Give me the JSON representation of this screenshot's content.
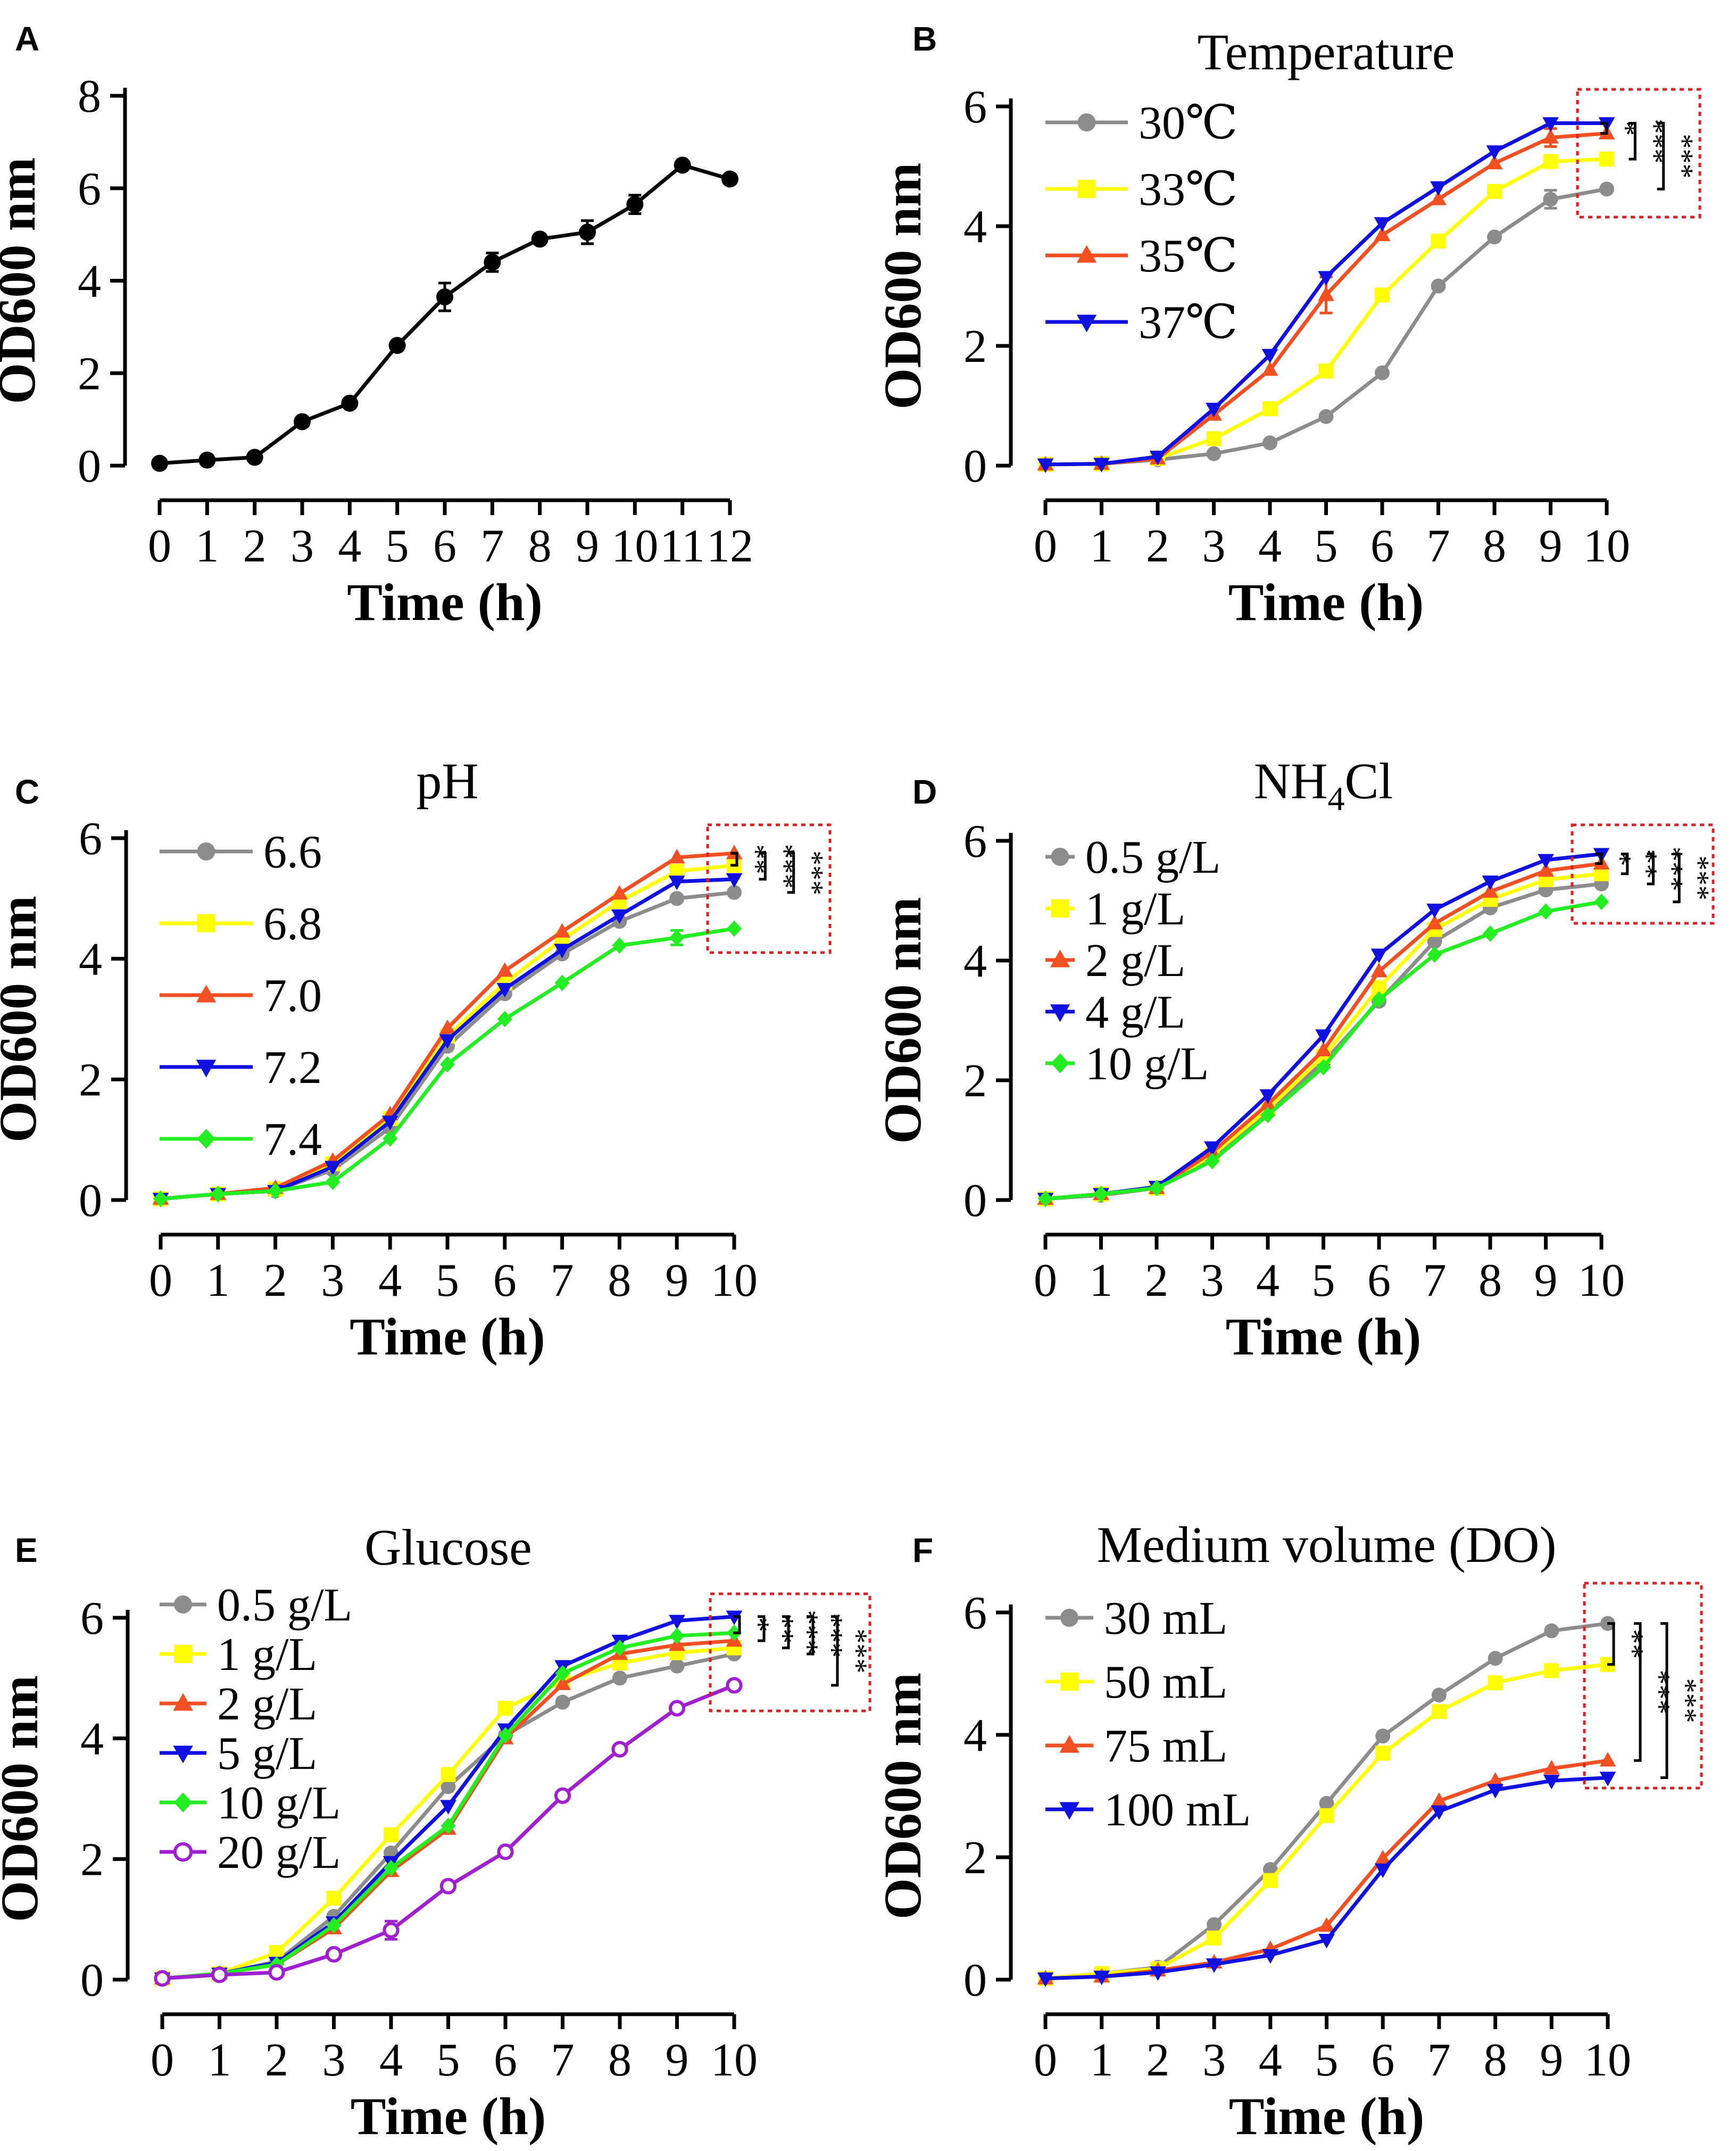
{
  "chart_data": [
    {
      "type": "line",
      "panel": "A",
      "title": "",
      "xlabel": "Time (h)",
      "ylabel": "OD600 nm",
      "xlim": [
        0,
        12
      ],
      "ylim": [
        0,
        8
      ],
      "xticks": [
        0,
        1,
        2,
        3,
        4,
        5,
        6,
        7,
        8,
        9,
        10,
        11,
        12
      ],
      "yticks": [
        0,
        2,
        4,
        6,
        8
      ],
      "x": [
        0,
        1,
        2,
        3,
        4,
        5,
        6,
        7,
        8,
        9,
        10,
        11,
        12
      ],
      "series": [
        {
          "name": "",
          "color": "#000000",
          "marker": "circle",
          "values": [
            0.05,
            0.12,
            0.18,
            0.95,
            1.35,
            2.6,
            3.65,
            4.4,
            4.9,
            5.05,
            5.65,
            6.5,
            6.2
          ],
          "errors": [
            0,
            0,
            0,
            0,
            0,
            0,
            0.3,
            0.2,
            0,
            0.25,
            0.2,
            0,
            0
          ]
        }
      ],
      "legend": [],
      "significance": []
    },
    {
      "type": "line",
      "panel": "B",
      "title": "Temperature",
      "xlabel": "Time (h)",
      "ylabel": "OD600 nm",
      "xlim": [
        0,
        10
      ],
      "ylim": [
        0,
        6
      ],
      "xticks": [
        0,
        1,
        2,
        3,
        4,
        5,
        6,
        7,
        8,
        9,
        10
      ],
      "yticks": [
        0,
        2,
        4,
        6
      ],
      "x": [
        0,
        1,
        2,
        3,
        4,
        5,
        6,
        7,
        8,
        9,
        10
      ],
      "series": [
        {
          "name": "30℃",
          "color": "#8c8c8c",
          "marker": "circle",
          "values": [
            0.02,
            0.03,
            0.1,
            0.2,
            0.38,
            0.82,
            1.55,
            3.0,
            3.82,
            4.45,
            4.62
          ],
          "errors": [
            0,
            0,
            0,
            0,
            0,
            0,
            0,
            0,
            0,
            0.15,
            0
          ]
        },
        {
          "name": "33℃",
          "color": "#ffff00",
          "marker": "square",
          "values": [
            0.02,
            0.03,
            0.12,
            0.45,
            0.95,
            1.58,
            2.85,
            3.75,
            4.58,
            5.08,
            5.12
          ],
          "errors": [
            0,
            0,
            0,
            0,
            0,
            0,
            0,
            0,
            0,
            0,
            0
          ]
        },
        {
          "name": "35℃",
          "color": "#f25022",
          "marker": "triangle-up",
          "values": [
            0.02,
            0.03,
            0.12,
            0.85,
            1.6,
            2.85,
            3.85,
            4.45,
            5.05,
            5.48,
            5.55
          ],
          "errors": [
            0,
            0,
            0,
            0,
            0,
            0.3,
            0,
            0,
            0,
            0.15,
            0
          ]
        },
        {
          "name": "37℃",
          "color": "#1010e0",
          "marker": "triangle-down",
          "values": [
            0.02,
            0.03,
            0.15,
            0.95,
            1.85,
            3.15,
            4.05,
            4.65,
            5.25,
            5.72,
            5.72
          ],
          "errors": [
            0,
            0,
            0,
            0,
            0,
            0,
            0,
            0,
            0,
            0,
            0
          ]
        }
      ],
      "legend": [
        "30℃",
        "33℃",
        "35℃",
        "37℃"
      ],
      "significance": [
        "*",
        "***",
        "***"
      ]
    },
    {
      "type": "line",
      "panel": "C",
      "title": "pH",
      "xlabel": "Time (h)",
      "ylabel": "OD600 nm",
      "xlim": [
        0,
        10
      ],
      "ylim": [
        0,
        6
      ],
      "xticks": [
        0,
        1,
        2,
        3,
        4,
        5,
        6,
        7,
        8,
        9,
        10
      ],
      "yticks": [
        0,
        2,
        4,
        6
      ],
      "x": [
        0,
        1,
        2,
        3,
        4,
        5,
        6,
        7,
        8,
        9,
        10
      ],
      "series": [
        {
          "name": "6.6",
          "color": "#8c8c8c",
          "marker": "circle",
          "values": [
            0.02,
            0.1,
            0.15,
            0.5,
            1.2,
            2.55,
            3.42,
            4.08,
            4.62,
            5.0,
            5.1
          ],
          "errors": [
            0,
            0,
            0,
            0,
            0,
            0,
            0,
            0,
            0,
            0,
            0
          ]
        },
        {
          "name": "6.8",
          "color": "#ffff00",
          "marker": "square",
          "values": [
            0.02,
            0.1,
            0.18,
            0.6,
            1.35,
            2.72,
            3.6,
            4.32,
            4.95,
            5.45,
            5.55
          ],
          "errors": [
            0,
            0,
            0,
            0,
            0,
            0,
            0,
            0,
            0,
            0,
            0
          ]
        },
        {
          "name": "7.0",
          "color": "#f25022",
          "marker": "triangle-up",
          "values": [
            0.02,
            0.1,
            0.2,
            0.65,
            1.42,
            2.85,
            3.8,
            4.45,
            5.08,
            5.68,
            5.75
          ],
          "errors": [
            0,
            0,
            0,
            0,
            0,
            0,
            0,
            0,
            0,
            0,
            0
          ]
        },
        {
          "name": "7.2",
          "color": "#1010e0",
          "marker": "triangle-down",
          "values": [
            0.02,
            0.1,
            0.15,
            0.55,
            1.3,
            2.65,
            3.5,
            4.15,
            4.72,
            5.28,
            5.32
          ],
          "errors": [
            0,
            0,
            0,
            0,
            0,
            0,
            0,
            0,
            0,
            0,
            0
          ]
        },
        {
          "name": "7.4",
          "color": "#22ee22",
          "marker": "diamond",
          "values": [
            0.02,
            0.1,
            0.15,
            0.3,
            1.02,
            2.25,
            3.0,
            3.6,
            4.22,
            4.35,
            4.5
          ],
          "errors": [
            0,
            0,
            0,
            0,
            0,
            0,
            0,
            0,
            0,
            0.12,
            0
          ]
        }
      ],
      "legend": [
        "6.6",
        "6.8",
        "7.0",
        "7.2",
        "7.4"
      ],
      "significance": [
        "**",
        "***",
        "***"
      ]
    },
    {
      "type": "line",
      "panel": "D",
      "title": "NH4Cl",
      "title_main": "NH",
      "title_sub": "4",
      "title_tail": "Cl",
      "xlabel": "Time (h)",
      "ylabel": "OD600 nm",
      "xlim": [
        0,
        10
      ],
      "ylim": [
        0,
        6
      ],
      "xticks": [
        0,
        1,
        2,
        3,
        4,
        5,
        6,
        7,
        8,
        9,
        10
      ],
      "yticks": [
        0,
        2,
        4,
        6
      ],
      "x": [
        0,
        1,
        2,
        3,
        4,
        5,
        6,
        7,
        8,
        9,
        10
      ],
      "series": [
        {
          "name": "0.5 g/L",
          "color": "#8c8c8c",
          "marker": "circle",
          "values": [
            0.02,
            0.08,
            0.2,
            0.72,
            1.5,
            2.3,
            3.32,
            4.32,
            4.88,
            5.18,
            5.28
          ],
          "errors": [
            0,
            0,
            0,
            0,
            0,
            0,
            0,
            0,
            0,
            0,
            0
          ]
        },
        {
          "name": "1 g/L",
          "color": "#ffff00",
          "marker": "square",
          "values": [
            0.02,
            0.1,
            0.2,
            0.75,
            1.52,
            2.4,
            3.55,
            4.52,
            5.02,
            5.35,
            5.45
          ],
          "errors": [
            0,
            0,
            0,
            0,
            0,
            0,
            0,
            0,
            0,
            0,
            0
          ]
        },
        {
          "name": "2 g/L",
          "color": "#f25022",
          "marker": "triangle-up",
          "values": [
            0.02,
            0.1,
            0.2,
            0.8,
            1.6,
            2.5,
            3.82,
            4.62,
            5.15,
            5.5,
            5.62
          ],
          "errors": [
            0,
            0,
            0,
            0,
            0,
            0,
            0,
            0,
            0,
            0,
            0
          ]
        },
        {
          "name": "4 g/L",
          "color": "#1010e0",
          "marker": "triangle-down",
          "values": [
            0.02,
            0.1,
            0.22,
            0.88,
            1.75,
            2.75,
            4.1,
            4.85,
            5.32,
            5.68,
            5.78
          ],
          "errors": [
            0,
            0,
            0,
            0,
            0,
            0,
            0,
            0,
            0,
            0,
            0
          ]
        },
        {
          "name": "10 g/L",
          "color": "#22ee22",
          "marker": "diamond",
          "values": [
            0.02,
            0.1,
            0.2,
            0.65,
            1.42,
            2.22,
            3.35,
            4.1,
            4.45,
            4.82,
            4.98
          ],
          "errors": [
            0,
            0,
            0,
            0,
            0,
            0,
            0,
            0,
            0,
            0,
            0
          ]
        }
      ],
      "legend": [
        "0.5 g/L",
        "1 g/L",
        "2 g/L",
        "4 g/L",
        "10 g/L"
      ],
      "significance": [
        "*",
        "**",
        "***",
        "***"
      ]
    },
    {
      "type": "line",
      "panel": "E",
      "title": "Glucose",
      "xlabel": "Time (h)",
      "ylabel": "OD600 nm",
      "xlim": [
        0,
        10
      ],
      "ylim": [
        0,
        6
      ],
      "xticks": [
        0,
        1,
        2,
        3,
        4,
        5,
        6,
        7,
        8,
        9,
        10
      ],
      "yticks": [
        0,
        2,
        4,
        6
      ],
      "x": [
        0,
        1,
        2,
        3,
        4,
        5,
        6,
        7,
        8,
        9,
        10
      ],
      "series": [
        {
          "name": "0.5 g/L",
          "color": "#8c8c8c",
          "marker": "circle",
          "values": [
            0.02,
            0.1,
            0.3,
            1.05,
            2.1,
            3.2,
            4.05,
            4.6,
            5.0,
            5.2,
            5.4
          ],
          "errors": [
            0,
            0,
            0,
            0,
            0,
            0,
            0,
            0,
            0,
            0,
            0
          ]
        },
        {
          "name": "1 g/L",
          "color": "#ffff00",
          "marker": "square",
          "values": [
            0.02,
            0.1,
            0.45,
            1.35,
            2.4,
            3.4,
            4.5,
            4.95,
            5.25,
            5.42,
            5.5
          ],
          "errors": [
            0,
            0,
            0,
            0,
            0,
            0,
            0,
            0,
            0,
            0,
            0
          ]
        },
        {
          "name": "2 g/L",
          "color": "#f25022",
          "marker": "triangle-up",
          "values": [
            0.02,
            0.1,
            0.25,
            0.85,
            1.8,
            2.5,
            4.0,
            4.9,
            5.4,
            5.55,
            5.62
          ],
          "errors": [
            0,
            0,
            0,
            0,
            0,
            0,
            0,
            0,
            0,
            0,
            0
          ]
        },
        {
          "name": "5 g/L",
          "color": "#1010e0",
          "marker": "triangle-down",
          "values": [
            0.02,
            0.1,
            0.28,
            0.95,
            1.95,
            2.88,
            4.15,
            5.2,
            5.62,
            5.95,
            6.02
          ],
          "errors": [
            0,
            0,
            0,
            0,
            0,
            0,
            0,
            0,
            0,
            0,
            0
          ]
        },
        {
          "name": "10 g/L",
          "color": "#22ee22",
          "marker": "diamond",
          "values": [
            0.02,
            0.1,
            0.25,
            0.9,
            1.85,
            2.55,
            4.05,
            5.08,
            5.5,
            5.7,
            5.75
          ],
          "errors": [
            0,
            0,
            0,
            0,
            0,
            0,
            0,
            0,
            0,
            0,
            0
          ]
        },
        {
          "name": "20 g/L",
          "color": "#a020d0",
          "marker": "open-circle",
          "values": [
            0.02,
            0.08,
            0.12,
            0.42,
            0.82,
            1.55,
            2.12,
            3.05,
            3.82,
            4.5,
            4.88
          ],
          "errors": [
            0,
            0,
            0,
            0,
            0.15,
            0,
            0,
            0,
            0,
            0,
            0
          ]
        }
      ],
      "legend": [
        "0.5 g/L",
        "1 g/L",
        "2 g/L",
        "5 g/L",
        "10 g/L",
        "20 g/L"
      ],
      "significance": [
        "*",
        "**",
        "***",
        "***",
        "***"
      ]
    },
    {
      "type": "line",
      "panel": "F",
      "title": "Medium volume (DO)",
      "xlabel": "Time (h)",
      "ylabel": "OD600 nm",
      "xlim": [
        0,
        10
      ],
      "ylim": [
        0,
        6
      ],
      "xticks": [
        0,
        1,
        2,
        3,
        4,
        5,
        6,
        7,
        8,
        9,
        10
      ],
      "yticks": [
        0,
        2,
        4,
        6
      ],
      "x": [
        0,
        1,
        2,
        3,
        4,
        5,
        6,
        7,
        8,
        9,
        10
      ],
      "series": [
        {
          "name": "30 mL",
          "color": "#8c8c8c",
          "marker": "circle",
          "values": [
            0.02,
            0.1,
            0.2,
            0.9,
            1.8,
            2.88,
            3.98,
            4.65,
            5.25,
            5.7,
            5.82
          ],
          "errors": [
            0,
            0,
            0,
            0,
            0,
            0,
            0,
            0,
            0,
            0,
            0
          ]
        },
        {
          "name": "50 mL",
          "color": "#ffff00",
          "marker": "square",
          "values": [
            0.02,
            0.1,
            0.18,
            0.68,
            1.62,
            2.68,
            3.7,
            4.38,
            4.85,
            5.05,
            5.15
          ],
          "errors": [
            0,
            0,
            0,
            0,
            0,
            0,
            0,
            0,
            0,
            0,
            0
          ]
        },
        {
          "name": "75 mL",
          "color": "#f25022",
          "marker": "triangle-up",
          "values": [
            0.02,
            0.05,
            0.15,
            0.28,
            0.5,
            0.88,
            1.98,
            2.92,
            3.25,
            3.45,
            3.58
          ],
          "errors": [
            0,
            0,
            0,
            0,
            0,
            0,
            0,
            0,
            0,
            0,
            0
          ]
        },
        {
          "name": "100 mL",
          "color": "#1010e0",
          "marker": "triangle-down",
          "values": [
            0.02,
            0.05,
            0.12,
            0.25,
            0.4,
            0.65,
            1.8,
            2.75,
            3.1,
            3.25,
            3.3
          ],
          "errors": [
            0,
            0,
            0,
            0,
            0,
            0,
            0,
            0,
            0,
            0,
            0
          ]
        }
      ],
      "legend": [
        "30 mL",
        "50 mL",
        "75 mL",
        "100 mL"
      ],
      "significance": [
        "**",
        "***",
        "***"
      ]
    }
  ]
}
